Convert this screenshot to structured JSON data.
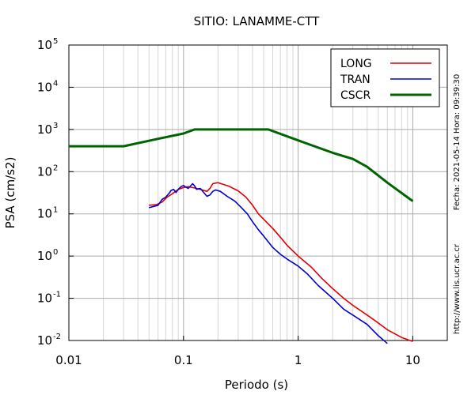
{
  "chart_data": {
    "type": "line",
    "title": "SITIO: LANAMME-CTT",
    "xlabel": "Periodo (s)",
    "ylabel": "PSA (cm/s2)",
    "xscale": "log",
    "yscale": "log",
    "xlim": [
      0.01,
      20
    ],
    "ylim": [
      0.01,
      100000
    ],
    "grid": true,
    "legend_position": "top-right",
    "x_ticks": [
      "0.01",
      "0.1",
      "1",
      "10"
    ],
    "y_ticks": [
      {
        "base": "10",
        "exp": "-2"
      },
      {
        "base": "10",
        "exp": "-1"
      },
      {
        "base": "10",
        "exp": "0"
      },
      {
        "base": "10",
        "exp": "1"
      },
      {
        "base": "10",
        "exp": "2"
      },
      {
        "base": "10",
        "exp": "3"
      },
      {
        "base": "10",
        "exp": "4"
      },
      {
        "base": "10",
        "exp": "5"
      }
    ],
    "side_text": {
      "date": "Fecha: 2021-05-14 Hora: 09:39:30",
      "url": "http://www.lis.ucr.ac.cr"
    },
    "series": [
      {
        "name": "LONG",
        "color": "#e00000",
        "points": [
          [
            0.05,
            16
          ],
          [
            0.058,
            16.5
          ],
          [
            0.065,
            19
          ],
          [
            0.072,
            25
          ],
          [
            0.08,
            30
          ],
          [
            0.09,
            38
          ],
          [
            0.1,
            42
          ],
          [
            0.11,
            44
          ],
          [
            0.12,
            42
          ],
          [
            0.14,
            38
          ],
          [
            0.16,
            34
          ],
          [
            0.17,
            40
          ],
          [
            0.18,
            52
          ],
          [
            0.2,
            55
          ],
          [
            0.25,
            45
          ],
          [
            0.3,
            35
          ],
          [
            0.35,
            25
          ],
          [
            0.4,
            16
          ],
          [
            0.45,
            10
          ],
          [
            0.5,
            7.5
          ],
          [
            0.6,
            4.5
          ],
          [
            0.7,
            2.8
          ],
          [
            0.8,
            1.8
          ],
          [
            1.0,
            1.0
          ],
          [
            1.3,
            0.55
          ],
          [
            1.6,
            0.3
          ],
          [
            2.0,
            0.17
          ],
          [
            2.5,
            0.1
          ],
          [
            3.0,
            0.068
          ],
          [
            4.0,
            0.04
          ],
          [
            5.0,
            0.026
          ],
          [
            6.0,
            0.018
          ],
          [
            8.0,
            0.0118
          ],
          [
            10.0,
            0.0095
          ]
        ]
      },
      {
        "name": "TRAN",
        "color": "#0000d0",
        "points": [
          [
            0.05,
            14
          ],
          [
            0.055,
            15
          ],
          [
            0.06,
            16
          ],
          [
            0.065,
            22
          ],
          [
            0.07,
            25
          ],
          [
            0.075,
            31
          ],
          [
            0.078,
            36
          ],
          [
            0.082,
            38
          ],
          [
            0.086,
            32
          ],
          [
            0.09,
            38
          ],
          [
            0.095,
            44
          ],
          [
            0.1,
            47
          ],
          [
            0.105,
            43
          ],
          [
            0.11,
            40
          ],
          [
            0.12,
            52
          ],
          [
            0.125,
            46
          ],
          [
            0.13,
            38
          ],
          [
            0.14,
            40
          ],
          [
            0.16,
            26
          ],
          [
            0.17,
            28
          ],
          [
            0.18,
            34
          ],
          [
            0.19,
            37
          ],
          [
            0.21,
            34
          ],
          [
            0.24,
            26
          ],
          [
            0.28,
            20
          ],
          [
            0.32,
            14
          ],
          [
            0.36,
            10
          ],
          [
            0.4,
            6.5
          ],
          [
            0.45,
            4.2
          ],
          [
            0.5,
            3.0
          ],
          [
            0.6,
            1.6
          ],
          [
            0.7,
            1.1
          ],
          [
            0.8,
            0.85
          ],
          [
            1.0,
            0.58
          ],
          [
            1.2,
            0.38
          ],
          [
            1.5,
            0.2
          ],
          [
            2.0,
            0.1
          ],
          [
            2.5,
            0.055
          ],
          [
            3.0,
            0.04
          ],
          [
            4.0,
            0.024
          ],
          [
            5.0,
            0.013
          ],
          [
            6.0,
            0.0085
          ]
        ]
      },
      {
        "name": "CSCR",
        "color": "#006400",
        "points": [
          [
            0.01,
            400
          ],
          [
            0.03,
            400
          ],
          [
            0.06,
            600
          ],
          [
            0.1,
            800
          ],
          [
            0.125,
            1000
          ],
          [
            0.55,
            1000
          ],
          [
            1.0,
            550
          ],
          [
            2.0,
            280
          ],
          [
            3.0,
            200
          ],
          [
            4.0,
            130
          ],
          [
            6.0,
            55
          ],
          [
            10.0,
            20
          ]
        ]
      }
    ]
  }
}
